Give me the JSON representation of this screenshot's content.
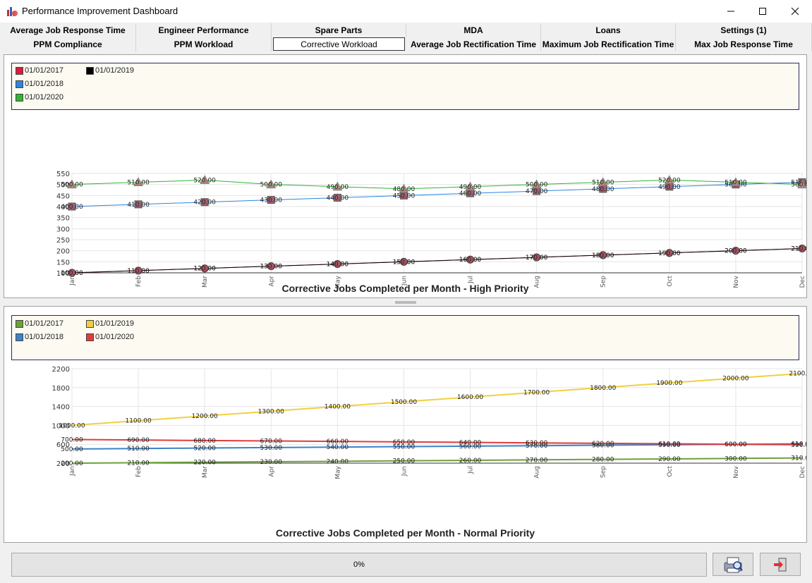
{
  "window": {
    "title": "Performance Improvement Dashboard",
    "min_label": "—",
    "max_label": "☐",
    "close_label": "✕"
  },
  "tabs_row1": [
    "Average Job Response Time",
    "Engineer Performance",
    "Spare Parts",
    "MDA",
    "Loans",
    "Settings (1)"
  ],
  "tabs_row2": [
    "PPM Compliance",
    "PPM Workload",
    "Corrective Workload",
    "Average Job Rectification Time",
    "Maximum Job Rectification Time",
    "Max Job Response Time"
  ],
  "active_tab": "Corrective Workload",
  "progress": {
    "label": "0%",
    "value": 0
  },
  "icons": {
    "preview": "print-preview-icon",
    "exit": "exit-icon"
  },
  "chart_data": [
    {
      "type": "line",
      "title": "Corrective Jobs Completed per Month - High Priority",
      "categories": [
        "Jan",
        "Feb",
        "Mar",
        "Apr",
        "May",
        "Jun",
        "Jul",
        "Aug",
        "Sep",
        "Oct",
        "Nov",
        "Dec"
      ],
      "ylim": [
        100,
        550
      ],
      "yticks": [
        100,
        150,
        200,
        250,
        300,
        350,
        400,
        450,
        500,
        550
      ],
      "grid": true,
      "legend_position": "top",
      "series": [
        {
          "name": "01/01/2017",
          "color": "#dc1c3c",
          "marker": "circle",
          "values": [
            100,
            110,
            120,
            130,
            140,
            150,
            160,
            170,
            180,
            190,
            200,
            210
          ]
        },
        {
          "name": "01/01/2018",
          "color": "#2b86e0",
          "marker": "square",
          "values": [
            400,
            410,
            420,
            430,
            440,
            450,
            460,
            470,
            480,
            490,
            500,
            510
          ]
        },
        {
          "name": "01/01/2019",
          "color": "#000000",
          "marker": "circle",
          "values": [
            100,
            110,
            120,
            130,
            140,
            150,
            160,
            170,
            180,
            190,
            200,
            210
          ]
        },
        {
          "name": "01/01/2020",
          "color": "#32b432",
          "marker": "triangle",
          "values": [
            500,
            510,
            520,
            500,
            490,
            480,
            490,
            500,
            510,
            520,
            510,
            500
          ]
        }
      ]
    },
    {
      "type": "line",
      "title": "Corrective Jobs Completed per Month - Normal Priority",
      "categories": [
        "Jan",
        "Feb",
        "Mar",
        "Apr",
        "May",
        "Jun",
        "Jul",
        "Aug",
        "Sep",
        "Oct",
        "Nov",
        "Dec"
      ],
      "ylim": [
        200,
        2200
      ],
      "yticks": [
        200,
        600,
        1000,
        1400,
        1800,
        2200
      ],
      "grid": true,
      "legend_position": "top",
      "series": [
        {
          "name": "01/01/2017",
          "color": "#6ea03c",
          "values": [
            200,
            210,
            220,
            230,
            240,
            250,
            260,
            270,
            280,
            290,
            300,
            310
          ]
        },
        {
          "name": "01/01/2018",
          "color": "#3c82c8",
          "values": [
            500,
            510,
            520,
            530,
            540,
            550,
            560,
            570,
            580,
            590,
            600,
            610
          ]
        },
        {
          "name": "01/01/2019",
          "color": "#f0d040",
          "values": [
            1000,
            1100,
            1200,
            1300,
            1400,
            1500,
            1600,
            1700,
            1800,
            1900,
            2000,
            2100
          ]
        },
        {
          "name": "01/01/2020",
          "color": "#e03c3c",
          "values": [
            700,
            690,
            680,
            670,
            660,
            650,
            640,
            630,
            620,
            610,
            600,
            590
          ]
        }
      ]
    }
  ]
}
